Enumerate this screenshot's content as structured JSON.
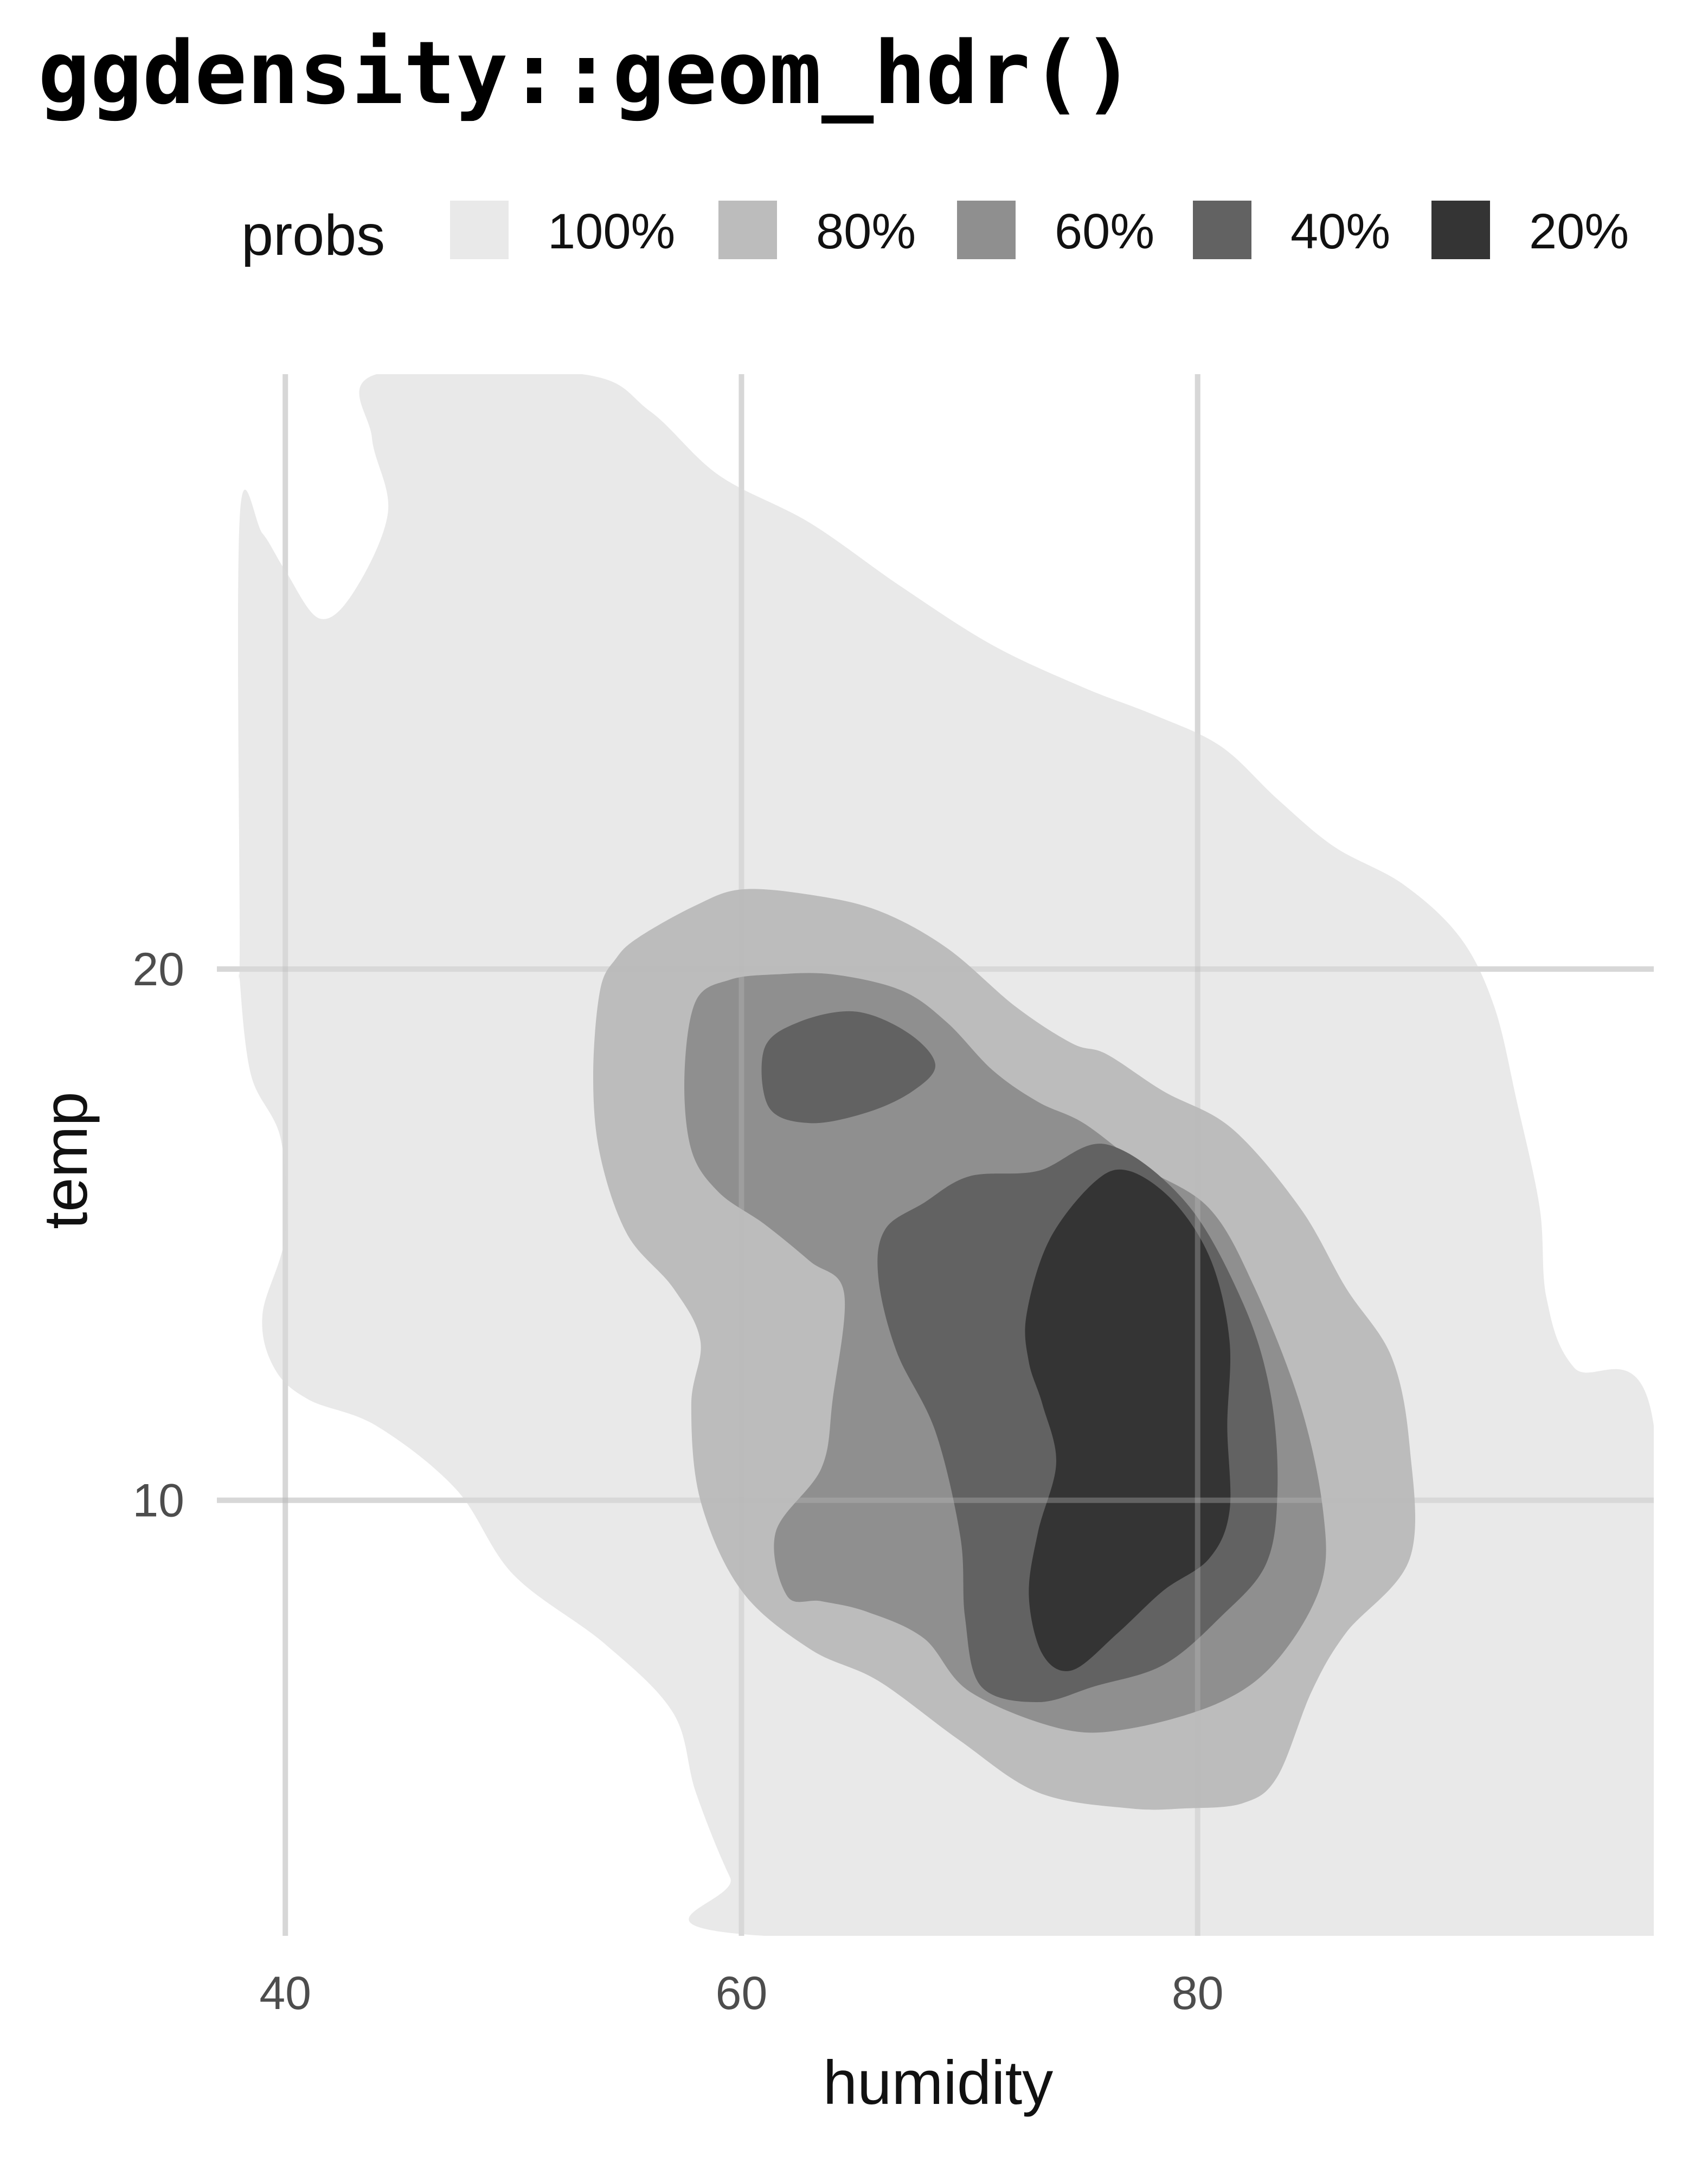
{
  "chart_data": {
    "type": "contour",
    "title": "ggdensity::geom_hdr()",
    "xlabel": "humidity",
    "ylabel": "temp",
    "xlim": [
      37,
      100
    ],
    "ylim": [
      1.8,
      31.2
    ],
    "x_ticks": [
      40,
      60,
      80
    ],
    "y_ticks": [
      10,
      20
    ],
    "grid": true,
    "legend": {
      "title": "probs",
      "position": "top",
      "levels": [
        {
          "label": "100%",
          "color": "#e9e9e9"
        },
        {
          "label": "80%",
          "color": "#bcbcbc"
        },
        {
          "label": "60%",
          "color": "#8f8f8f"
        },
        {
          "label": "40%",
          "color": "#626262"
        },
        {
          "label": "20%",
          "color": "#343434"
        }
      ]
    },
    "regions": [
      {
        "prob": "100%",
        "color": "#e9e9e9",
        "points": [
          [
            38,
            28.5
          ],
          [
            39,
            28.2
          ],
          [
            40,
            27.5
          ],
          [
            41.5,
            26.6
          ],
          [
            43,
            27.1
          ],
          [
            44.5,
            28.6
          ],
          [
            43.8,
            30.0
          ],
          [
            44,
            31.2
          ],
          [
            53,
            31.2
          ],
          [
            56,
            30.5
          ],
          [
            59,
            29.3
          ],
          [
            63,
            28.4
          ],
          [
            67,
            27.2
          ],
          [
            71,
            26.1
          ],
          [
            75,
            25.3
          ],
          [
            78,
            24.8
          ],
          [
            81,
            24.2
          ],
          [
            83.5,
            23.2
          ],
          [
            86,
            22.3
          ],
          [
            89,
            21.6
          ],
          [
            91.5,
            20.6
          ],
          [
            93,
            19.3
          ],
          [
            94,
            17.5
          ],
          [
            95,
            15.5
          ],
          [
            95.3,
            13.8
          ],
          [
            96.5,
            12.5
          ],
          [
            100,
            11.4
          ],
          [
            100,
            1.8
          ],
          [
            61,
            1.8
          ],
          [
            59.5,
            2.9
          ],
          [
            58,
            4.5
          ],
          [
            57,
            6.0
          ],
          [
            54,
            7.3
          ],
          [
            50,
            8.6
          ],
          [
            47.5,
            10.2
          ],
          [
            44,
            11.4
          ],
          [
            41,
            11.9
          ],
          [
            39.5,
            12.5
          ],
          [
            39,
            13.5
          ],
          [
            40,
            15.0
          ],
          [
            39.8,
            16.8
          ],
          [
            38.5,
            18.0
          ],
          [
            38,
            19.8
          ],
          [
            38,
            20.6
          ]
        ]
      },
      {
        "prob": "80%",
        "color": "#bcbcbc",
        "points": [
          [
            55.5,
            20.6
          ],
          [
            58,
            21.2
          ],
          [
            60,
            21.5
          ],
          [
            63,
            21.4
          ],
          [
            66,
            21.1
          ],
          [
            69,
            20.4
          ],
          [
            72,
            19.3
          ],
          [
            74.5,
            18.6
          ],
          [
            76,
            18.4
          ],
          [
            78.5,
            17.7
          ],
          [
            81.5,
            17.0
          ],
          [
            84.5,
            15.5
          ],
          [
            86.5,
            14.0
          ],
          [
            88.5,
            12.7
          ],
          [
            89.3,
            11.0
          ],
          [
            89.3,
            8.9
          ],
          [
            86.5,
            7.5
          ],
          [
            85,
            6.4
          ],
          [
            83.5,
            4.8
          ],
          [
            82,
            4.3
          ],
          [
            79.5,
            4.2
          ],
          [
            77,
            4.2
          ],
          [
            73,
            4.5
          ],
          [
            69.5,
            5.5
          ],
          [
            66,
            6.6
          ],
          [
            63,
            7.2
          ],
          [
            60,
            8.3
          ],
          [
            58.2,
            10.0
          ],
          [
            57.8,
            11.8
          ],
          [
            58.2,
            13.0
          ],
          [
            57,
            14.0
          ],
          [
            55,
            15.0
          ],
          [
            53.8,
            16.5
          ],
          [
            53.5,
            18.0
          ],
          [
            53.8,
            19.6
          ],
          [
            54.5,
            20.2
          ]
        ]
      },
      {
        "prob": "60%",
        "color": "#8f8f8f",
        "points": [
          [
            58,
            19.4
          ],
          [
            59.5,
            19.8
          ],
          [
            61.5,
            19.9
          ],
          [
            64,
            19.9
          ],
          [
            67,
            19.6
          ],
          [
            69,
            19.0
          ],
          [
            71,
            18.1
          ],
          [
            73,
            17.5
          ],
          [
            75,
            17.1
          ],
          [
            77.5,
            16.3
          ],
          [
            80.5,
            15.5
          ],
          [
            82.5,
            14.0
          ],
          [
            84.5,
            11.8
          ],
          [
            85.5,
            9.8
          ],
          [
            85.4,
            8.4
          ],
          [
            83.5,
            7.0
          ],
          [
            81,
            6.2
          ],
          [
            77,
            5.7
          ],
          [
            74,
            5.7
          ],
          [
            70,
            6.4
          ],
          [
            68,
            7.4
          ],
          [
            65.5,
            7.9
          ],
          [
            63.5,
            8.1
          ],
          [
            62,
            8.2
          ],
          [
            61.5,
            9.4
          ],
          [
            63.5,
            10.6
          ],
          [
            64,
            11.9
          ],
          [
            64.5,
            13.9
          ],
          [
            63,
            14.5
          ],
          [
            61,
            15.2
          ],
          [
            59,
            15.8
          ],
          [
            57.8,
            16.6
          ],
          [
            57.5,
            18.0
          ]
        ]
      },
      {
        "prob": "40%",
        "color": "#626262",
        "points": [
          [
            61,
            18.5
          ],
          [
            62.5,
            19.0
          ],
          [
            65,
            19.2
          ],
          [
            67.3,
            18.8
          ],
          [
            68.5,
            18.2
          ],
          [
            67.5,
            17.7
          ],
          [
            65.5,
            17.3
          ],
          [
            63,
            17.1
          ],
          [
            61.2,
            17.4
          ]
        ]
      },
      {
        "prob": "40%",
        "color": "#626262",
        "points": [
          [
            66.3,
            15.1
          ],
          [
            68,
            15.6
          ],
          [
            70,
            16.1
          ],
          [
            73,
            16.2
          ],
          [
            76,
            16.7
          ],
          [
            79.5,
            15.6
          ],
          [
            82,
            13.7
          ],
          [
            83.2,
            12.0
          ],
          [
            83.5,
            10.2
          ],
          [
            83,
            8.8
          ],
          [
            81,
            7.8
          ],
          [
            78.5,
            6.9
          ],
          [
            75.5,
            6.5
          ],
          [
            73,
            6.2
          ],
          [
            70.5,
            6.5
          ],
          [
            69.8,
            7.8
          ],
          [
            69.6,
            9.3
          ],
          [
            68.5,
            11.3
          ],
          [
            66.8,
            12.8
          ],
          [
            66,
            14.2
          ]
        ]
      },
      {
        "prob": "20%",
        "color": "#343434",
        "points": [
          [
            72.5,
            13.5
          ],
          [
            73.5,
            14.9
          ],
          [
            75.5,
            16.0
          ],
          [
            77,
            16.2
          ],
          [
            79,
            15.6
          ],
          [
            80.6,
            14.5
          ],
          [
            81.4,
            13.0
          ],
          [
            81.3,
            11.4
          ],
          [
            81.4,
            9.8
          ],
          [
            80.5,
            8.9
          ],
          [
            78.5,
            8.3
          ],
          [
            76.5,
            7.5
          ],
          [
            74.5,
            6.8
          ],
          [
            73.2,
            7.1
          ],
          [
            72.6,
            8.2
          ],
          [
            73,
            9.4
          ],
          [
            73.8,
            10.7
          ],
          [
            73.2,
            11.8
          ],
          [
            72.6,
            12.6
          ]
        ]
      }
    ]
  }
}
